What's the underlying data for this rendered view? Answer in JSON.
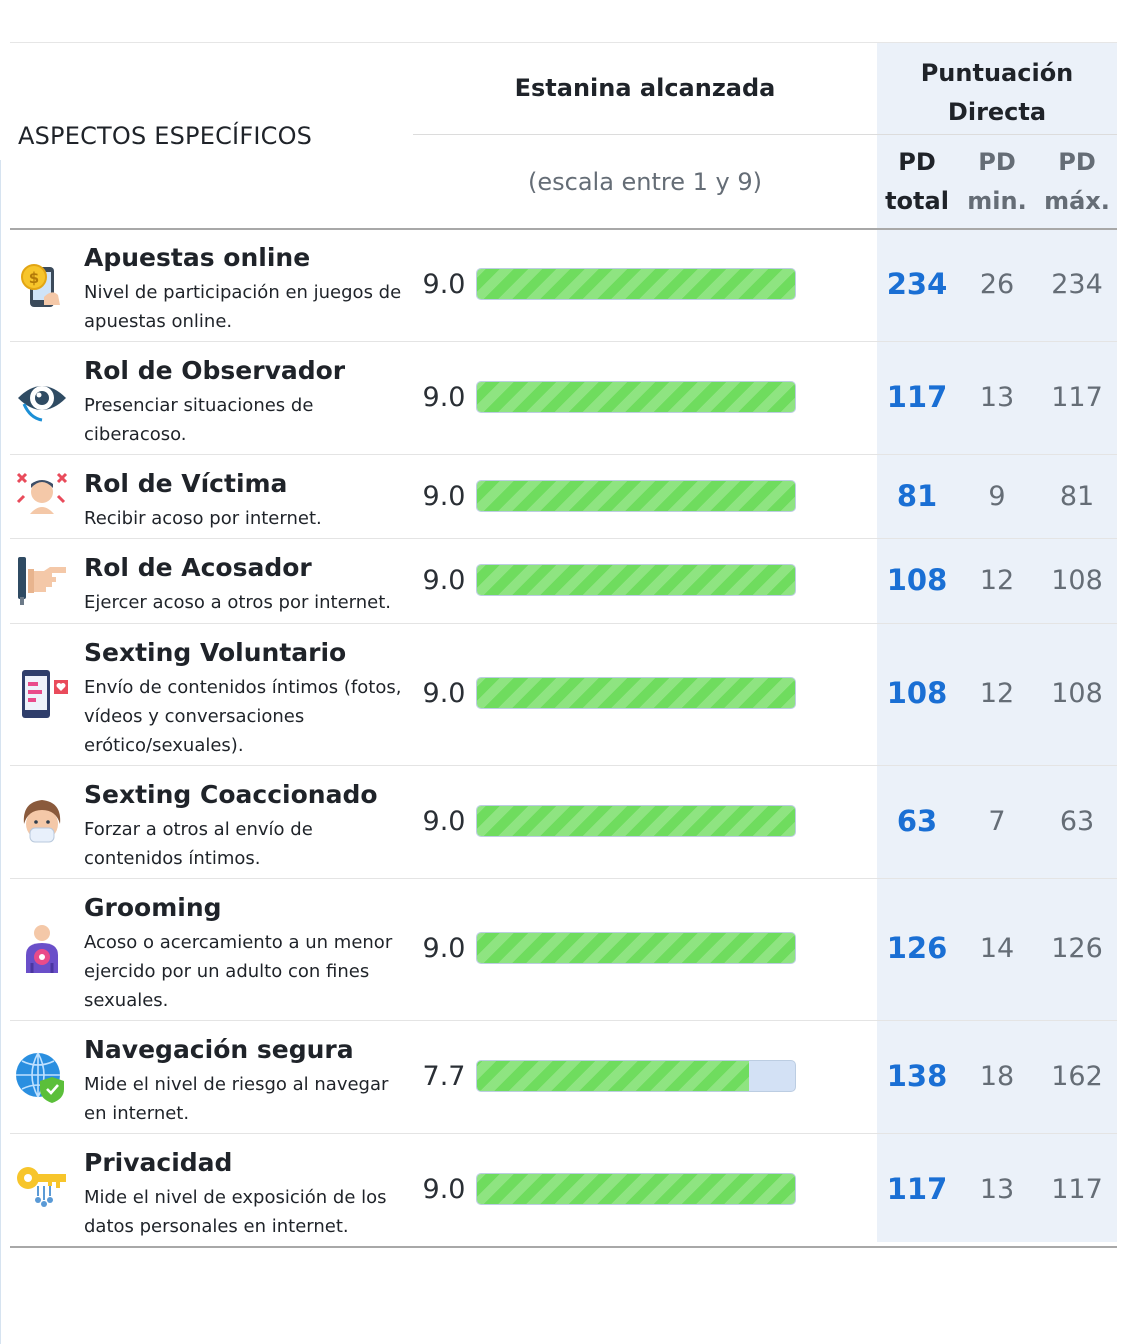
{
  "header": {
    "aspects_title": "ASPECTOS ESPECÍFICOS",
    "estanina_title": "Estanina alcanzada",
    "scale_note": "(escala entre 1 y 9)",
    "pd_title_line1": "Puntuación",
    "pd_title_line2": "Directa",
    "pd_total_line1": "PD",
    "pd_total_line2": "total",
    "pd_min_line1": "PD",
    "pd_min_line2": "min.",
    "pd_max_line1": "PD",
    "pd_max_line2": "máx."
  },
  "scale": {
    "min": 1,
    "max": 9
  },
  "colors": {
    "bar": "#6fdc5e",
    "track": "#d3e1f5",
    "pd_total": "#1a6fd4",
    "pd_column_bg": "#ebf1f9"
  },
  "rows": [
    {
      "icon": "phone-coin-icon",
      "title": "Apuestas online",
      "desc": "Nivel de participación en juegos de apuestas online.",
      "score": "9.0",
      "value": 9.0,
      "pd_total": "234",
      "pd_min": "26",
      "pd_max": "234"
    },
    {
      "icon": "eye-icon",
      "title": "Rol de Observador",
      "desc": "Presenciar situaciones de ciberacoso.",
      "score": "9.0",
      "value": 9.0,
      "pd_total": "117",
      "pd_min": "13",
      "pd_max": "117"
    },
    {
      "icon": "victim-icon",
      "title": "Rol de Víctima",
      "desc": "Recibir acoso por internet.",
      "score": "9.0",
      "value": 9.0,
      "pd_total": "81",
      "pd_min": "9",
      "pd_max": "81"
    },
    {
      "icon": "pointing-hand-icon",
      "title": "Rol de Acosador",
      "desc": "Ejercer acoso a otros por internet.",
      "score": "9.0",
      "value": 9.0,
      "pd_total": "108",
      "pd_min": "12",
      "pd_max": "108"
    },
    {
      "icon": "phone-heart-icon",
      "title": "Sexting Voluntario",
      "desc": "Envío de contenidos íntimos (fotos, vídeos y conversaciones erótico/sexuales).",
      "score": "9.0",
      "value": 9.0,
      "pd_total": "108",
      "pd_min": "12",
      "pd_max": "108"
    },
    {
      "icon": "masked-person-icon",
      "title": "Sexting Coaccionado",
      "desc": "Forzar a otros al envío de contenidos íntimos.",
      "score": "9.0",
      "value": 9.0,
      "pd_total": "63",
      "pd_min": "7",
      "pd_max": "63"
    },
    {
      "icon": "person-target-icon",
      "title": "Grooming",
      "desc": "Acoso o acercamiento a un menor ejercido por un adulto con fines sexuales.",
      "score": "9.0",
      "value": 9.0,
      "pd_total": "126",
      "pd_min": "14",
      "pd_max": "126"
    },
    {
      "icon": "globe-shield-icon",
      "title": "Navegación segura",
      "desc": "Mide el nivel de riesgo al navegar en internet.",
      "score": "7.7",
      "value": 7.7,
      "pd_total": "138",
      "pd_min": "18",
      "pd_max": "162"
    },
    {
      "icon": "key-icon",
      "title": "Privacidad",
      "desc": "Mide el nivel de exposición de los datos personales en internet.",
      "score": "9.0",
      "value": 9.0,
      "pd_total": "117",
      "pd_min": "13",
      "pd_max": "117"
    }
  ]
}
